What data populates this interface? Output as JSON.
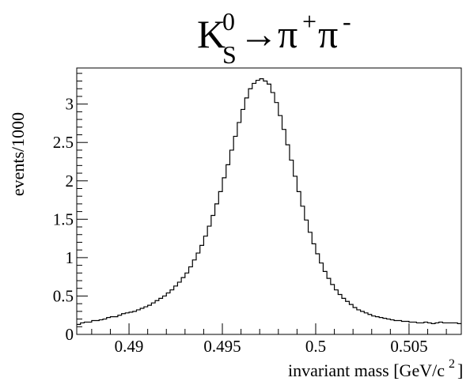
{
  "chart_data": {
    "type": "histogram",
    "title": {
      "base": "K",
      "base_sup": "0",
      "base_sub": "S",
      "arrow": "→",
      "p1": "π",
      "p1_sup": "+",
      "p2": "π",
      "p2_sup": "-"
    },
    "xlabel": "invariant mass  [GeV/c",
    "xlabel_sup": "2",
    "xlabel_end": "]",
    "ylabel": "events/1000",
    "xlim": [
      0.4872,
      0.5078
    ],
    "ylim": [
      0,
      3.47
    ],
    "x_ticks": [
      0.49,
      0.495,
      0.5,
      0.505
    ],
    "x_tick_labels": [
      "0.49",
      "0.495",
      "0.5",
      "0.505"
    ],
    "y_ticks": [
      0,
      0.5,
      1,
      1.5,
      2,
      2.5,
      3
    ],
    "y_tick_labels": [
      "0",
      "0.5",
      "1",
      "1.5",
      "2",
      "2.5",
      "3"
    ],
    "grid": false,
    "line_color": "#000000",
    "bin_edges_start": 0.4872,
    "bin_width": 0.0002,
    "bin_values": [
      0.13,
      0.15,
      0.16,
      0.16,
      0.18,
      0.18,
      0.19,
      0.2,
      0.22,
      0.23,
      0.23,
      0.25,
      0.27,
      0.28,
      0.29,
      0.3,
      0.32,
      0.34,
      0.36,
      0.38,
      0.41,
      0.44,
      0.47,
      0.5,
      0.54,
      0.58,
      0.63,
      0.68,
      0.74,
      0.8,
      0.88,
      0.97,
      1.06,
      1.16,
      1.28,
      1.41,
      1.55,
      1.7,
      1.86,
      2.04,
      2.21,
      2.4,
      2.58,
      2.76,
      2.93,
      3.08,
      3.2,
      3.27,
      3.31,
      3.33,
      3.3,
      3.26,
      3.15,
      3.02,
      2.85,
      2.67,
      2.47,
      2.27,
      2.06,
      1.86,
      1.67,
      1.49,
      1.33,
      1.18,
      1.05,
      0.93,
      0.82,
      0.73,
      0.65,
      0.58,
      0.52,
      0.47,
      0.43,
      0.39,
      0.35,
      0.32,
      0.3,
      0.28,
      0.26,
      0.24,
      0.23,
      0.22,
      0.21,
      0.2,
      0.19,
      0.18,
      0.18,
      0.17,
      0.17,
      0.16,
      0.16,
      0.15,
      0.15,
      0.16,
      0.15,
      0.14,
      0.15,
      0.16,
      0.15,
      0.15,
      0.15,
      0.15,
      0.14
    ]
  }
}
